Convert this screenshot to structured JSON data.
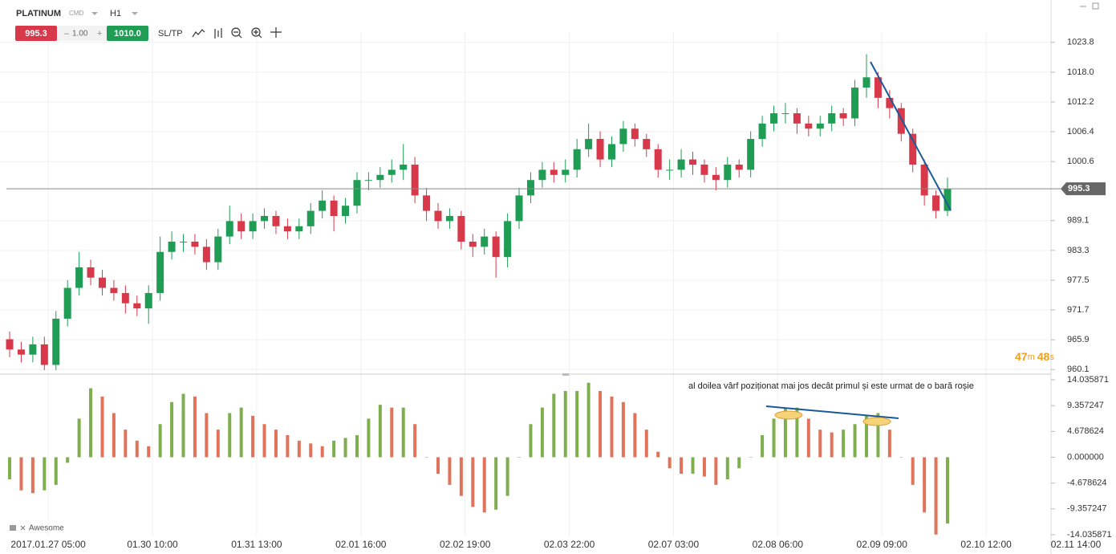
{
  "toolbar": {
    "symbol": "PLATINUM",
    "kind": "CMD",
    "timeframe": "H1",
    "sell": "995.3",
    "minus": "–",
    "volume": "1.00",
    "plus": "+",
    "buy": "1010.0",
    "sltp": "SL/TP"
  },
  "timer": {
    "minutes": "47",
    "m": "m",
    "seconds": "48",
    "s": "s"
  },
  "annotation": "al doilea vârf poziționat mai jos decât primul și este urmat de o bară roșie",
  "chart_data": [
    {
      "type": "candlestick",
      "x": [
        0,
        3,
        6,
        9,
        12,
        15,
        18,
        21,
        24,
        27,
        30,
        33,
        36,
        39,
        42,
        45,
        48,
        51,
        54,
        57,
        60,
        63,
        66,
        69,
        72,
        75,
        78,
        81,
        84,
        87,
        90,
        93,
        96,
        99,
        102,
        105,
        108,
        111,
        114,
        117,
        120,
        123,
        126,
        129,
        132,
        135,
        138,
        141,
        144,
        147,
        150,
        153,
        156,
        159,
        162,
        165,
        168,
        171,
        174,
        177,
        180,
        183,
        186,
        189,
        192,
        195,
        198,
        201,
        204,
        207,
        210,
        213,
        216,
        219,
        222,
        225,
        228,
        231,
        234,
        237,
        240,
        243
      ],
      "open": [
        966,
        964,
        963,
        965,
        961,
        970,
        976,
        980,
        978,
        976,
        975,
        973,
        972,
        975,
        983,
        985,
        985,
        984,
        981,
        986,
        989,
        987,
        989,
        990,
        988,
        987,
        988,
        991,
        993,
        990,
        992,
        997,
        997,
        998,
        999,
        1000,
        994,
        991,
        989,
        990,
        985,
        984,
        986,
        982,
        989,
        994,
        997,
        999,
        998,
        999,
        1003,
        1005,
        1001,
        1004,
        1007,
        1005,
        1003,
        999,
        999,
        1001,
        1000,
        998,
        997,
        1000,
        999,
        1005,
        1008,
        1010,
        1010,
        1008,
        1007,
        1008,
        1010,
        1009,
        1015,
        1017,
        1013,
        1011,
        1006,
        1000,
        994,
        991
      ],
      "high": [
        967.5,
        965.5,
        966.5,
        966.5,
        971.5,
        977.5,
        983,
        981.5,
        979.5,
        977.5,
        976.5,
        974.5,
        976.5,
        986,
        987,
        986.5,
        986.5,
        985.5,
        987.5,
        992,
        990.5,
        990.5,
        991.5,
        991,
        989.5,
        989.5,
        992.5,
        995,
        994,
        993.5,
        998.5,
        998.5,
        999.5,
        1001,
        1004,
        1001.5,
        995.5,
        992.5,
        991.5,
        991,
        986.5,
        987.5,
        987,
        990.5,
        995.5,
        998.5,
        1000.5,
        1000.5,
        1001,
        1005,
        1008,
        1006.5,
        1005.5,
        1008.5,
        1008,
        1006,
        1004,
        1001,
        1003,
        1002.5,
        1001,
        999.5,
        1001.5,
        1001,
        1006.5,
        1009.5,
        1011.5,
        1012,
        1011,
        1009.5,
        1009.5,
        1011.5,
        1011,
        1016.5,
        1021.5,
        1018,
        1014.5,
        1012,
        1007,
        1001,
        995,
        997.5
      ],
      "low": [
        962.5,
        961.5,
        961.5,
        960,
        960,
        968.5,
        974.5,
        976.5,
        974.5,
        973.5,
        971,
        970.5,
        969,
        973.5,
        981.5,
        983,
        982.5,
        979.5,
        979.5,
        984.5,
        985.5,
        985.5,
        987.5,
        986.5,
        985.5,
        985.5,
        986.5,
        989.5,
        987,
        988.5,
        990.5,
        995,
        995.5,
        996.5,
        997,
        992.5,
        989,
        987.5,
        987.5,
        983.5,
        982,
        982.5,
        978,
        980,
        987.5,
        992.5,
        995.5,
        996.5,
        996.5,
        997.5,
        1001.5,
        999.5,
        999.5,
        1002.5,
        1003.5,
        1001.5,
        997.5,
        997,
        997.5,
        998,
        996.5,
        995,
        995.5,
        997.5,
        997.5,
        1003.5,
        1006.5,
        1008,
        1006,
        1005.5,
        1005.5,
        1006.5,
        1007.5,
        1007.5,
        1013,
        1011,
        1009,
        1004.5,
        998.5,
        992,
        989.5,
        990
      ],
      "close": [
        964,
        963,
        965,
        961,
        970,
        976,
        980,
        978,
        976,
        975,
        973,
        972,
        975,
        983,
        985,
        985,
        984,
        981,
        986,
        989,
        987,
        989,
        990,
        988,
        987,
        988,
        991,
        993,
        990,
        992,
        997,
        997,
        998,
        999,
        1000,
        994,
        991,
        989,
        990,
        985,
        984,
        986,
        982,
        989,
        994,
        997,
        999,
        998,
        999,
        1003,
        1005,
        1001,
        1004,
        1007,
        1005,
        1003,
        999,
        999,
        1001,
        1000,
        998,
        997,
        1000,
        999,
        1005,
        1008,
        1010,
        1010,
        1008,
        1007,
        1008,
        1010,
        1009,
        1015,
        1017,
        1013,
        1011,
        1006,
        1000,
        994,
        991,
        995.3
      ],
      "up_color": "#1f9d55",
      "down_color": "#d8394a",
      "current_price": 995.3,
      "xlim": [
        -2.5,
        280
      ],
      "xticks": [
        {
          "value": 10,
          "label": "2017.01.27 05:00"
        },
        {
          "value": 37,
          "label": "01.30 10:00"
        },
        {
          "value": 64,
          "label": "01.31 13:00"
        },
        {
          "value": 91,
          "label": "02.01 16:00"
        },
        {
          "value": 118,
          "label": "02.02 19:00"
        },
        {
          "value": 145,
          "label": "02.03 22:00"
        },
        {
          "value": 172,
          "label": "02.07 03:00"
        },
        {
          "value": 199,
          "label": "02.08 06:00"
        },
        {
          "value": 226,
          "label": "02.09 09:00"
        },
        {
          "value": 253,
          "label": "02.10 12:00"
        },
        {
          "value": 279,
          "label": "02.11 14:00"
        }
      ],
      "ylim": [
        959.2,
        1025.8
      ],
      "yticks": [
        1023.8,
        {
          "value": 1018,
          "label": "1018.0"
        },
        1012.2,
        1006.4,
        1000.6,
        989.1,
        983.3,
        977.5,
        971.7,
        965.9,
        960.1
      ],
      "grid": true
    },
    {
      "type": "bar",
      "name": "Awesome",
      "x": [
        0,
        3,
        6,
        9,
        12,
        15,
        18,
        21,
        24,
        27,
        30,
        33,
        36,
        39,
        42,
        45,
        48,
        51,
        54,
        57,
        60,
        63,
        66,
        69,
        72,
        75,
        78,
        81,
        84,
        87,
        90,
        93,
        96,
        99,
        102,
        105,
        108,
        111,
        114,
        117,
        120,
        123,
        126,
        129,
        132,
        135,
        138,
        141,
        144,
        147,
        150,
        153,
        156,
        159,
        162,
        165,
        168,
        171,
        174,
        177,
        180,
        183,
        186,
        189,
        192,
        195,
        198,
        201,
        204,
        207,
        210,
        213,
        216,
        219,
        222,
        225,
        228,
        231,
        234,
        237,
        240,
        243
      ],
      "values": [
        -4,
        -6,
        -6.5,
        -6,
        -5,
        -1,
        7,
        12.5,
        11,
        8,
        5,
        3,
        2,
        6,
        10,
        11.5,
        11,
        8,
        5,
        8,
        9,
        7.5,
        6,
        5,
        4,
        3,
        2.5,
        2,
        3,
        3.5,
        4,
        7,
        9.5,
        9,
        9,
        6,
        0,
        -3,
        -5,
        -7,
        -9,
        -10,
        -9.5,
        -7,
        0,
        6,
        9,
        11.5,
        12,
        12,
        13.5,
        12,
        11,
        10,
        8,
        5,
        1,
        -2,
        -3,
        -3,
        -3.5,
        -5,
        -4,
        -2,
        0,
        4,
        7,
        9,
        9,
        7,
        5,
        4.5,
        5,
        6,
        7.5,
        8,
        5,
        0,
        -5,
        -10,
        -14,
        -12
      ],
      "up_color": "#7fae4f",
      "down_color": "#e0735a",
      "ylim": [
        -14.035871,
        14.035871
      ],
      "yticks": [
        14.035871,
        9.357247,
        4.678624,
        {
          "value": 0,
          "label": "0.000000"
        },
        -4.678624,
        -9.357247,
        -14.035871
      ]
    }
  ]
}
